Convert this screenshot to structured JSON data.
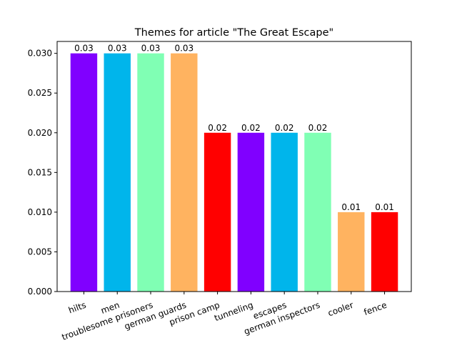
{
  "chart_data": {
    "type": "bar",
    "title": "Themes for article \"The Great Escape\"",
    "xlabel": "",
    "ylabel": "",
    "categories": [
      "hilts",
      "men",
      "troublesome prisoners",
      "german guards",
      "prison camp",
      "tunneling",
      "escapes",
      "german inspectors",
      "cooler",
      "fence"
    ],
    "values": [
      0.03,
      0.03,
      0.03,
      0.03,
      0.02,
      0.02,
      0.02,
      0.02,
      0.01,
      0.01
    ],
    "value_labels": [
      "0.03",
      "0.03",
      "0.03",
      "0.03",
      "0.02",
      "0.02",
      "0.02",
      "0.02",
      "0.01",
      "0.01"
    ],
    "colors": [
      "#8000ff",
      "#00b5eb",
      "#80ffb4",
      "#ffb360",
      "#ff0000",
      "#8000ff",
      "#00b5eb",
      "#80ffb4",
      "#ffb360",
      "#ff0000"
    ],
    "ylim": [
      0,
      0.0315
    ],
    "yticks": [
      0.0,
      0.005,
      0.01,
      0.015,
      0.02,
      0.025,
      0.03
    ],
    "ytick_labels": [
      "0.000",
      "0.005",
      "0.010",
      "0.015",
      "0.020",
      "0.025",
      "0.030"
    ],
    "grid": false,
    "legend": "none"
  }
}
